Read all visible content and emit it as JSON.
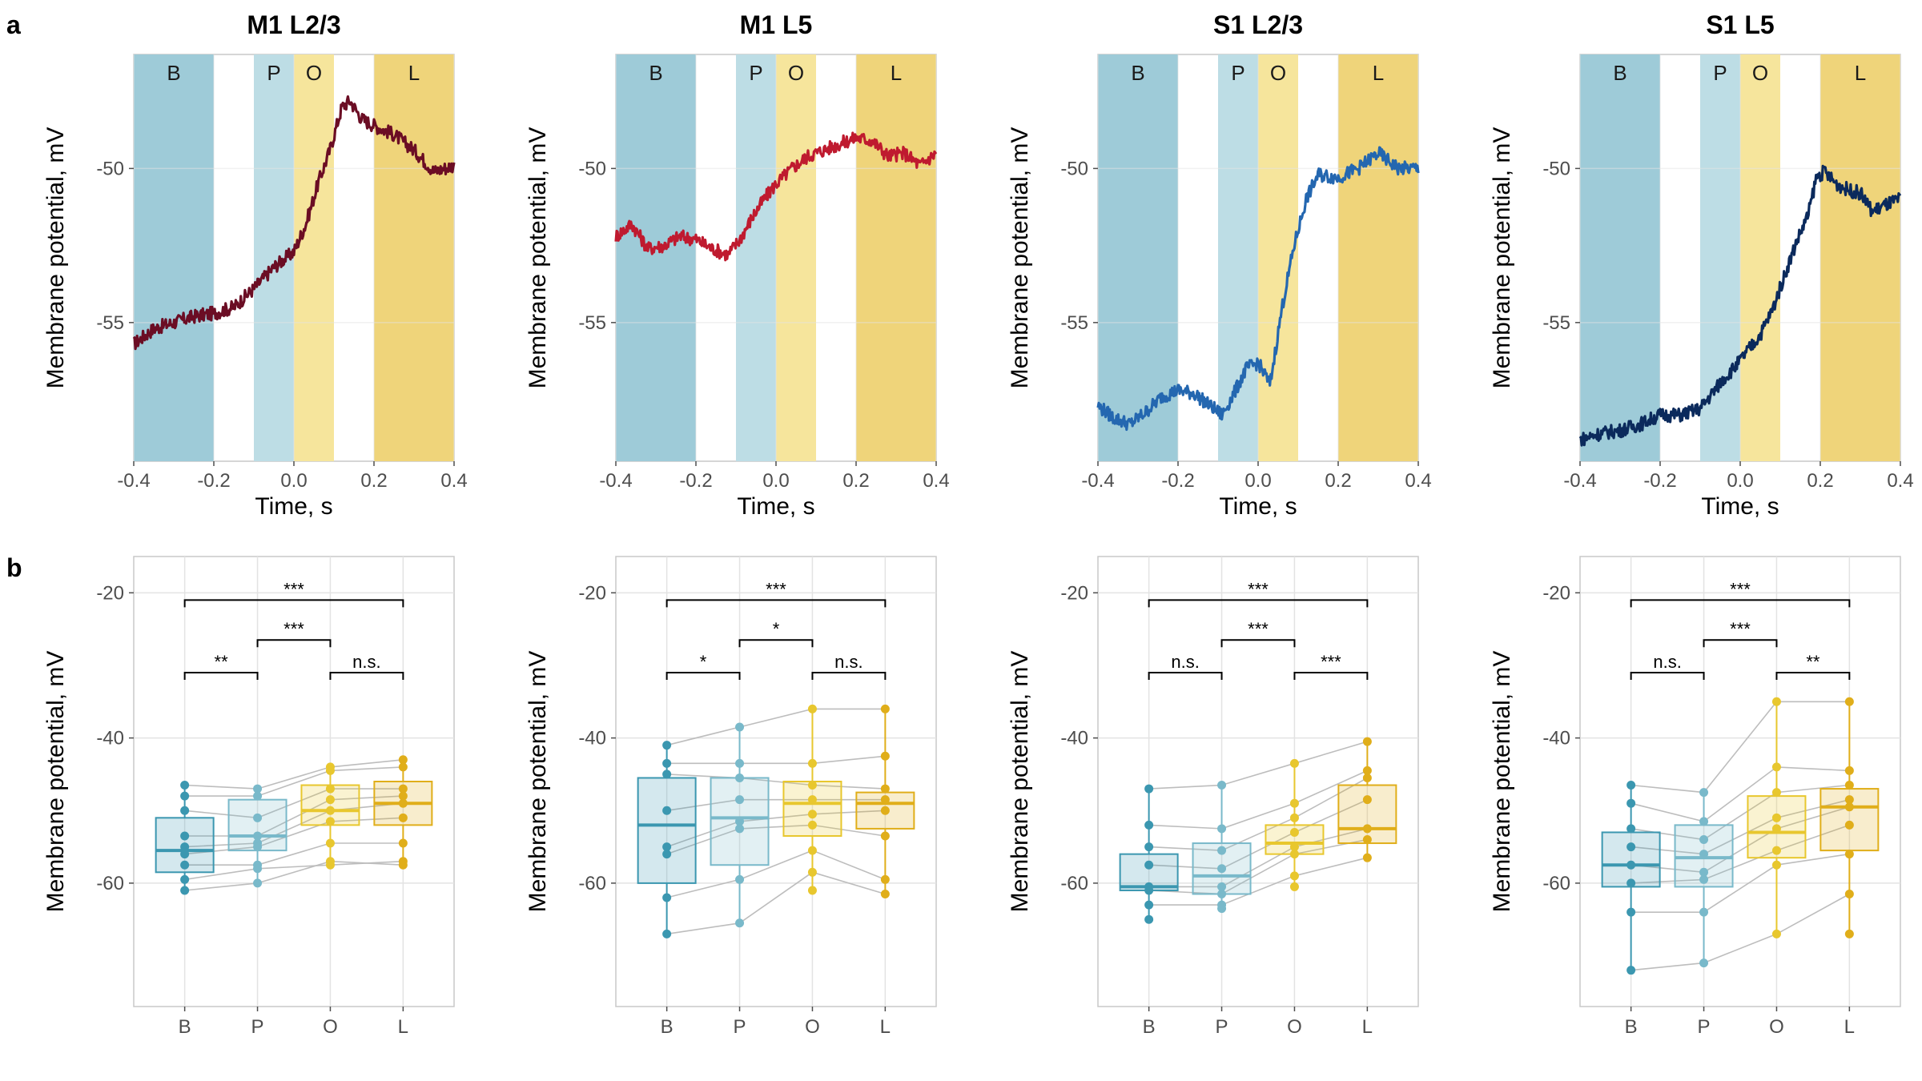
{
  "panel_letters": {
    "a": "a",
    "b": "b"
  },
  "phase_labels": [
    "B",
    "P",
    "O",
    "L"
  ],
  "colors": {
    "phase_B": "#9ecbd8",
    "phase_P": "#bddde5",
    "phase_O": "#f6e59c",
    "phase_L": "#efd47a",
    "box_B": "#3b97b0",
    "box_P": "#79b9ca",
    "box_O": "#e8c72e",
    "box_L": "#e0ae1a",
    "pair_line": "#bdbdbd"
  },
  "chart_data": [
    {
      "type": "line",
      "panel": "a",
      "title": "M1 L2/3",
      "xlabel": "Time, s",
      "ylabel": "Membrane potential, mV",
      "xlim": [
        -0.4,
        0.4
      ],
      "ylim": [
        -59.5,
        -46.3
      ],
      "xticks": [
        "-0.4",
        "-0.2",
        "0.0",
        "0.2",
        "0.4"
      ],
      "yticks": [
        "-55",
        "-50"
      ],
      "phases": [
        {
          "label": "B",
          "start": -0.4,
          "end": -0.2
        },
        {
          "label": "P",
          "start": -0.1,
          "end": 0.0
        },
        {
          "label": "O",
          "start": 0.0,
          "end": 0.1
        },
        {
          "label": "L",
          "start": 0.2,
          "end": 0.4
        }
      ],
      "series": [
        {
          "color": "#6b0d24",
          "x": [
            -0.4,
            -0.35,
            -0.3,
            -0.25,
            -0.2,
            -0.15,
            -0.1,
            -0.05,
            0.0,
            0.03,
            0.06,
            0.09,
            0.12,
            0.14,
            0.17,
            0.2,
            0.25,
            0.3,
            0.35,
            0.4
          ],
          "y": [
            -55.7,
            -55.2,
            -55.0,
            -54.8,
            -54.7,
            -54.5,
            -53.9,
            -53.2,
            -52.7,
            -51.8,
            -50.5,
            -49.4,
            -48.0,
            -47.8,
            -48.4,
            -48.6,
            -48.9,
            -49.4,
            -50.1,
            -49.9
          ]
        }
      ]
    },
    {
      "type": "line",
      "panel": "a",
      "title": "M1 L5",
      "xlabel": "Time, s",
      "ylabel": "Membrane potential, mV",
      "xlim": [
        -0.4,
        0.4
      ],
      "ylim": [
        -59.5,
        -46.3
      ],
      "xticks": [
        "-0.4",
        "-0.2",
        "0.0",
        "0.2",
        "0.4"
      ],
      "yticks": [
        "-55",
        "-50"
      ],
      "phases": [
        {
          "label": "B",
          "start": -0.4,
          "end": -0.2
        },
        {
          "label": "P",
          "start": -0.1,
          "end": 0.0
        },
        {
          "label": "O",
          "start": 0.0,
          "end": 0.1
        },
        {
          "label": "L",
          "start": 0.2,
          "end": 0.4
        }
      ],
      "series": [
        {
          "color": "#bf1a2f",
          "x": [
            -0.4,
            -0.36,
            -0.32,
            -0.28,
            -0.24,
            -0.2,
            -0.16,
            -0.12,
            -0.09,
            -0.06,
            -0.03,
            0.0,
            0.04,
            0.08,
            0.12,
            0.16,
            0.2,
            0.24,
            0.28,
            0.32,
            0.36,
            0.4
          ],
          "y": [
            -52.2,
            -51.8,
            -52.6,
            -52.5,
            -52.2,
            -52.3,
            -52.6,
            -52.8,
            -52.3,
            -51.6,
            -51.0,
            -50.5,
            -50.0,
            -49.6,
            -49.4,
            -49.2,
            -49.0,
            -49.1,
            -49.6,
            -49.5,
            -49.9,
            -49.5
          ]
        }
      ]
    },
    {
      "type": "line",
      "panel": "a",
      "title": "S1 L2/3",
      "xlabel": "Time, s",
      "ylabel": "Membrane potential, mV",
      "xlim": [
        -0.4,
        0.4
      ],
      "ylim": [
        -59.5,
        -46.3
      ],
      "xticks": [
        "-0.4",
        "-0.2",
        "0.0",
        "0.2",
        "0.4"
      ],
      "yticks": [
        "-55",
        "-50"
      ],
      "phases": [
        {
          "label": "B",
          "start": -0.4,
          "end": -0.2
        },
        {
          "label": "P",
          "start": -0.1,
          "end": 0.0
        },
        {
          "label": "O",
          "start": 0.0,
          "end": 0.1
        },
        {
          "label": "L",
          "start": 0.2,
          "end": 0.4
        }
      ],
      "series": [
        {
          "color": "#2467b0",
          "x": [
            -0.4,
            -0.36,
            -0.32,
            -0.28,
            -0.24,
            -0.2,
            -0.16,
            -0.12,
            -0.09,
            -0.06,
            -0.03,
            0.0,
            0.03,
            0.06,
            0.09,
            0.12,
            0.15,
            0.2,
            0.25,
            0.3,
            0.35,
            0.4
          ],
          "y": [
            -57.7,
            -58.1,
            -58.3,
            -57.9,
            -57.4,
            -57.2,
            -57.3,
            -57.7,
            -58.0,
            -57.3,
            -56.5,
            -56.3,
            -57.0,
            -54.5,
            -52.5,
            -51.0,
            -50.2,
            -50.3,
            -50.0,
            -49.5,
            -50.0,
            -50.0
          ]
        }
      ]
    },
    {
      "type": "line",
      "panel": "a",
      "title": "S1 L5",
      "xlabel": "Time, s",
      "ylabel": "Membrane potential, mV",
      "xlim": [
        -0.4,
        0.4
      ],
      "ylim": [
        -59.5,
        -46.3
      ],
      "xticks": [
        "-0.4",
        "-0.2",
        "0.0",
        "0.2",
        "0.4"
      ],
      "yticks": [
        "-55",
        "-50"
      ],
      "phases": [
        {
          "label": "B",
          "start": -0.4,
          "end": -0.2
        },
        {
          "label": "P",
          "start": -0.1,
          "end": 0.0
        },
        {
          "label": "O",
          "start": 0.0,
          "end": 0.1
        },
        {
          "label": "L",
          "start": 0.2,
          "end": 0.4
        }
      ],
      "series": [
        {
          "color": "#0b2a5c",
          "x": [
            -0.4,
            -0.35,
            -0.3,
            -0.25,
            -0.2,
            -0.15,
            -0.1,
            -0.07,
            -0.04,
            -0.01,
            0.02,
            0.05,
            0.08,
            0.11,
            0.14,
            0.17,
            0.19,
            0.21,
            0.24,
            0.27,
            0.3,
            0.33,
            0.36,
            0.4
          ],
          "y": [
            -58.8,
            -58.6,
            -58.5,
            -58.3,
            -58.0,
            -58.0,
            -57.8,
            -57.3,
            -56.8,
            -56.4,
            -55.9,
            -55.4,
            -54.6,
            -53.5,
            -52.4,
            -51.5,
            -50.3,
            -50.1,
            -50.5,
            -50.7,
            -50.8,
            -51.4,
            -51.2,
            -51.0
          ]
        }
      ]
    },
    {
      "type": "box",
      "panel": "b",
      "title": "",
      "xlabel": "",
      "ylabel": "Membrane potential, mV",
      "categories": [
        "B",
        "P",
        "O",
        "L"
      ],
      "ylim": [
        -77,
        -15
      ],
      "yticks": [
        "-60",
        "-40",
        "-20"
      ],
      "boxes": [
        {
          "q1": -58.5,
          "median": -55.5,
          "q3": -51.0,
          "wlo": -61.0,
          "whi": -46.5
        },
        {
          "q1": -55.5,
          "median": -53.5,
          "q3": -48.5,
          "wlo": -60.0,
          "whi": -47.0
        },
        {
          "q1": -52.0,
          "median": -50.0,
          "q3": -46.5,
          "wlo": -57.5,
          "whi": -44.0
        },
        {
          "q1": -52.0,
          "median": -49.0,
          "q3": -46.0,
          "wlo": -57.5,
          "whi": -43.0
        }
      ],
      "points": [
        [
          -46.5,
          -48,
          -50,
          -53.5,
          -55,
          -56,
          -57.5,
          -59.5,
          -61
        ],
        [
          -47,
          -48,
          -51,
          -53.5,
          -54.5,
          -55,
          -57.5,
          -58,
          -60
        ],
        [
          -44,
          -44.5,
          -47,
          -48.5,
          -50,
          -51.5,
          -54.5,
          -57.5,
          -57
        ],
        [
          -43,
          -44,
          -47,
          -48,
          -49,
          -51,
          -54.5,
          -57,
          -57.5
        ]
      ],
      "significance": [
        {
          "from": "B",
          "to": "L",
          "label": "***"
        },
        {
          "from": "P",
          "to": "O",
          "label": "***"
        },
        {
          "from": "B",
          "to": "P",
          "label": "**"
        },
        {
          "from": "O",
          "to": "L",
          "label": "n.s."
        }
      ]
    },
    {
      "type": "box",
      "panel": "b",
      "title": "",
      "xlabel": "",
      "ylabel": "Membrane potential, mV",
      "categories": [
        "B",
        "P",
        "O",
        "L"
      ],
      "ylim": [
        -77,
        -15
      ],
      "yticks": [
        "-60",
        "-40",
        "-20"
      ],
      "boxes": [
        {
          "q1": -60.0,
          "median": -52.0,
          "q3": -45.5,
          "wlo": -67.0,
          "whi": -41.0
        },
        {
          "q1": -57.5,
          "median": -51.0,
          "q3": -45.5,
          "wlo": -65.5,
          "whi": -38.5
        },
        {
          "q1": -53.5,
          "median": -49.0,
          "q3": -46.0,
          "wlo": -61.0,
          "whi": -36.0
        },
        {
          "q1": -52.5,
          "median": -49.0,
          "q3": -47.5,
          "wlo": -61.5,
          "whi": -36.0
        }
      ],
      "points": [
        [
          -41,
          -43.5,
          -45,
          -50,
          -55,
          -56,
          -62,
          -67
        ],
        [
          -38.5,
          -43.5,
          -45.5,
          -48.5,
          -51.5,
          -52.5,
          -59.5,
          -65.5
        ],
        [
          -36,
          -43.5,
          -46.5,
          -48.5,
          -50.5,
          -52,
          -55.5,
          -58.5,
          -61
        ],
        [
          -36,
          -42.5,
          -47,
          -48.5,
          -50,
          -53.5,
          -59.5,
          -61.5
        ]
      ],
      "significance": [
        {
          "from": "B",
          "to": "L",
          "label": "***"
        },
        {
          "from": "P",
          "to": "O",
          "label": "*"
        },
        {
          "from": "B",
          "to": "P",
          "label": "*"
        },
        {
          "from": "O",
          "to": "L",
          "label": "n.s."
        }
      ]
    },
    {
      "type": "box",
      "panel": "b",
      "title": "",
      "xlabel": "",
      "ylabel": "Membrane potential, mV",
      "categories": [
        "B",
        "P",
        "O",
        "L"
      ],
      "ylim": [
        -77,
        -15
      ],
      "yticks": [
        "-60",
        "-40",
        "-20"
      ],
      "boxes": [
        {
          "q1": -61.0,
          "median": -60.5,
          "q3": -56.0,
          "wlo": -65.0,
          "whi": -47.0
        },
        {
          "q1": -61.5,
          "median": -59.0,
          "q3": -54.5,
          "wlo": -63.5,
          "whi": -46.5
        },
        {
          "q1": -56.0,
          "median": -54.5,
          "q3": -52.0,
          "wlo": -60.5,
          "whi": -43.5
        },
        {
          "q1": -54.5,
          "median": -52.5,
          "q3": -46.5,
          "wlo": -56.5,
          "whi": -40.5
        }
      ],
      "points": [
        [
          -47,
          -52,
          -55,
          -57.5,
          -60.5,
          -61,
          -63,
          -65
        ],
        [
          -46.5,
          -52.5,
          -55.5,
          -58,
          -60.5,
          -61.5,
          -63,
          -63.5
        ],
        [
          -43.5,
          -49,
          -51,
          -53,
          -55,
          -56,
          -59,
          -60.5
        ],
        [
          -40.5,
          -44.5,
          -45.5,
          -48.5,
          -52.5,
          -54,
          -56.5
        ]
      ],
      "significance": [
        {
          "from": "B",
          "to": "L",
          "label": "***"
        },
        {
          "from": "P",
          "to": "O",
          "label": "***"
        },
        {
          "from": "B",
          "to": "P",
          "label": "n.s."
        },
        {
          "from": "O",
          "to": "L",
          "label": "***"
        }
      ]
    },
    {
      "type": "box",
      "panel": "b",
      "title": "",
      "xlabel": "",
      "ylabel": "Membrane potential, mV",
      "categories": [
        "B",
        "P",
        "O",
        "L"
      ],
      "ylim": [
        -77,
        -15
      ],
      "yticks": [
        "-60",
        "-40",
        "-20"
      ],
      "boxes": [
        {
          "q1": -60.5,
          "median": -57.5,
          "q3": -53.0,
          "wlo": -72.0,
          "whi": -46.5
        },
        {
          "q1": -60.5,
          "median": -56.5,
          "q3": -52.0,
          "wlo": -71.0,
          "whi": -47.5
        },
        {
          "q1": -56.5,
          "median": -53.0,
          "q3": -48.0,
          "wlo": -67.0,
          "whi": -35.0
        },
        {
          "q1": -55.5,
          "median": -49.5,
          "q3": -47.0,
          "wlo": -67.0,
          "whi": -35.0
        }
      ],
      "points": [
        [
          -46.5,
          -49,
          -52.5,
          -55,
          -57.5,
          -60,
          -64,
          -72
        ],
        [
          -47.5,
          -51.5,
          -54,
          -56,
          -58.5,
          -59.5,
          -64,
          -71
        ],
        [
          -35,
          -44,
          -47.5,
          -51,
          -52.5,
          -55.5,
          -57.5,
          -67
        ],
        [
          -35,
          -44.5,
          -46.5,
          -48.5,
          -49.5,
          -52,
          -56,
          -61.5,
          -67
        ]
      ],
      "significance": [
        {
          "from": "B",
          "to": "L",
          "label": "***"
        },
        {
          "from": "P",
          "to": "O",
          "label": "***"
        },
        {
          "from": "B",
          "to": "P",
          "label": "n.s."
        },
        {
          "from": "O",
          "to": "L",
          "label": "**"
        }
      ]
    }
  ]
}
